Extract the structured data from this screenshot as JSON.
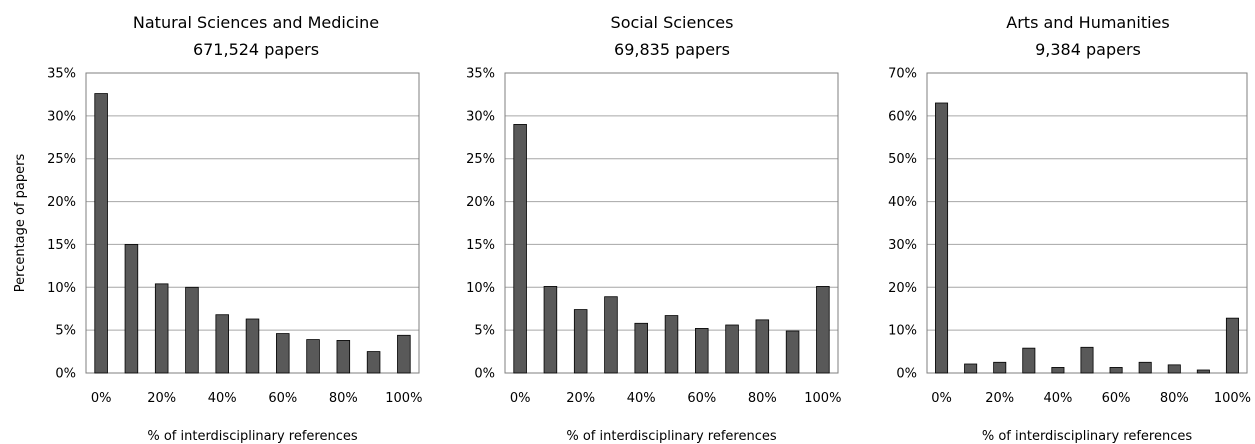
{
  "chart_data": [
    {
      "type": "bar",
      "title": "Natural Sciences and Medicine",
      "subtitle": "671,524 papers",
      "xlabel": "% of interdisciplinary references",
      "ylabel": "Percentage of papers",
      "categories": [
        "0%",
        "10%",
        "20%",
        "30%",
        "40%",
        "50%",
        "60%",
        "70%",
        "80%",
        "90%",
        "100%"
      ],
      "x_tick_labels": [
        "0%",
        "20%",
        "40%",
        "60%",
        "80%",
        "100%"
      ],
      "values": [
        32.6,
        15.0,
        10.4,
        10.0,
        6.8,
        6.3,
        4.6,
        3.9,
        3.8,
        2.5,
        4.4
      ],
      "ylim": [
        0,
        35
      ],
      "y_tick_labels": [
        "0%",
        "5%",
        "10%",
        "15%",
        "20%",
        "25%",
        "30%",
        "35%"
      ],
      "grid": true,
      "colors": {
        "bar": "#595959",
        "grid": "#a6a6a6"
      }
    },
    {
      "type": "bar",
      "title": "Social Sciences",
      "subtitle": "69,835 papers",
      "xlabel": "% of interdisciplinary references",
      "ylabel": "",
      "categories": [
        "0%",
        "10%",
        "20%",
        "30%",
        "40%",
        "50%",
        "60%",
        "70%",
        "80%",
        "90%",
        "100%"
      ],
      "x_tick_labels": [
        "0%",
        "20%",
        "40%",
        "60%",
        "80%",
        "100%"
      ],
      "values": [
        29.0,
        10.1,
        7.4,
        8.9,
        5.8,
        6.7,
        5.2,
        5.6,
        6.2,
        4.9,
        10.1
      ],
      "ylim": [
        0,
        35
      ],
      "y_tick_labels": [
        "0%",
        "5%",
        "10%",
        "15%",
        "20%",
        "25%",
        "30%",
        "35%"
      ],
      "grid": true,
      "colors": {
        "bar": "#595959",
        "grid": "#a6a6a6"
      }
    },
    {
      "type": "bar",
      "title": "Arts and Humanities",
      "subtitle": "9,384 papers",
      "xlabel": "% of interdisciplinary references",
      "ylabel": "",
      "categories": [
        "0%",
        "10%",
        "20%",
        "30%",
        "40%",
        "50%",
        "60%",
        "70%",
        "80%",
        "90%",
        "100%"
      ],
      "x_tick_labels": [
        "0%",
        "20%",
        "40%",
        "60%",
        "80%",
        "100%"
      ],
      "values": [
        63.0,
        2.1,
        2.5,
        5.8,
        1.3,
        6.0,
        1.3,
        2.5,
        1.9,
        0.7,
        12.8
      ],
      "ylim": [
        0,
        70
      ],
      "y_tick_labels": [
        "0%",
        "10%",
        "20%",
        "30%",
        "40%",
        "50%",
        "60%",
        "70%"
      ],
      "grid": true,
      "colors": {
        "bar": "#595959",
        "grid": "#a6a6a6"
      }
    }
  ]
}
